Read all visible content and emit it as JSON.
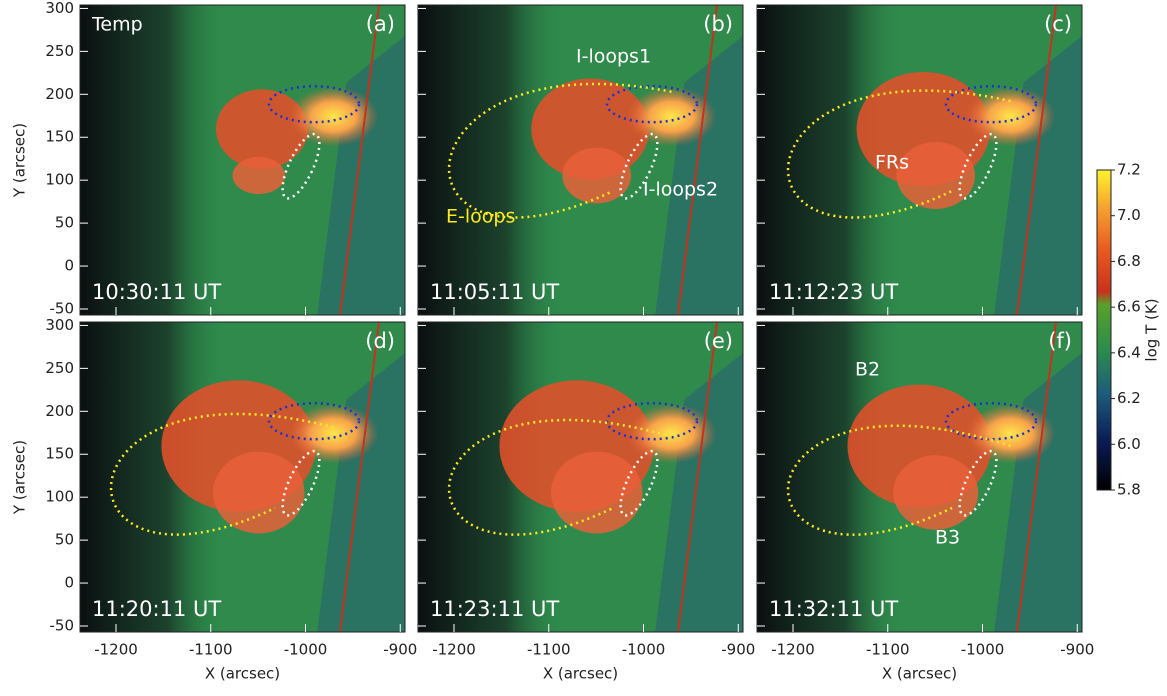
{
  "chart_data": [
    {
      "type": "image",
      "panel": "(a)",
      "time": "10:30:11 UT",
      "annotations": [
        "Temp"
      ],
      "ylabel": "Y (arcsec)",
      "xlim": [
        -1238,
        -895
      ],
      "ylim": [
        -57,
        304
      ],
      "xticks": [
        -1200,
        -1100,
        -1000,
        -900
      ],
      "yticks": [
        -50,
        0,
        50,
        100,
        150,
        200,
        250,
        300
      ]
    },
    {
      "type": "image",
      "panel": "(b)",
      "time": "11:05:11 UT",
      "annotations": [
        "I-loops1",
        "I-loops2",
        "E-loops"
      ],
      "xlim": [
        -1238,
        -895
      ],
      "ylim": [
        -57,
        304
      ],
      "xticks": [
        -1200,
        -1100,
        -1000,
        -900
      ],
      "yticks": [
        -50,
        0,
        50,
        100,
        150,
        200,
        250,
        300
      ]
    },
    {
      "type": "image",
      "panel": "(c)",
      "time": "11:12:23 UT",
      "annotations": [
        "FRs"
      ],
      "xlim": [
        -1238,
        -895
      ],
      "ylim": [
        -57,
        304
      ],
      "xticks": [
        -1200,
        -1100,
        -1000,
        -900
      ],
      "yticks": [
        -50,
        0,
        50,
        100,
        150,
        200,
        250,
        300
      ]
    },
    {
      "type": "image",
      "panel": "(d)",
      "time": "11:20:11 UT",
      "annotations": [],
      "ylabel": "Y (arcsec)",
      "xlabel": "X (arcsec)",
      "xlim": [
        -1238,
        -895
      ],
      "ylim": [
        -57,
        304
      ],
      "xticks": [
        -1200,
        -1100,
        -1000,
        -900
      ],
      "yticks": [
        -50,
        0,
        50,
        100,
        150,
        200,
        250,
        300
      ]
    },
    {
      "type": "image",
      "panel": "(e)",
      "time": "11:23:11 UT",
      "annotations": [],
      "xlabel": "X (arcsec)",
      "xlim": [
        -1238,
        -895
      ],
      "ylim": [
        -57,
        304
      ],
      "xticks": [
        -1200,
        -1100,
        -1000,
        -900
      ],
      "yticks": [
        -50,
        0,
        50,
        100,
        150,
        200,
        250,
        300
      ]
    },
    {
      "type": "image",
      "panel": "(f)",
      "time": "11:32:11 UT",
      "annotations": [
        "B2",
        "B3"
      ],
      "xlabel": "X (arcsec)",
      "xlim": [
        -1238,
        -895
      ],
      "ylim": [
        -57,
        304
      ],
      "xticks": [
        -1200,
        -1100,
        -1000,
        -900
      ],
      "yticks": [
        -50,
        0,
        50,
        100,
        150,
        200,
        250,
        300
      ]
    }
  ],
  "colorbar": {
    "label": "log T (K)",
    "lim": [
      5.8,
      7.2
    ],
    "ticks": [
      5.8,
      {
        "value": 6,
        "label": "6.0"
      },
      6.2,
      6.4,
      6.6,
      6.8,
      {
        "value": 7,
        "label": "7.0"
      },
      7.2
    ]
  }
}
